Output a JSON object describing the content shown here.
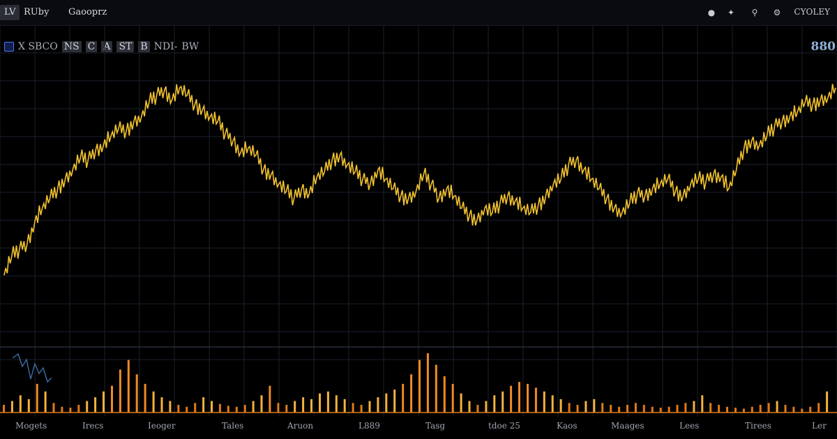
{
  "topbar": {
    "tabs": [
      {
        "label": "LV",
        "active": true
      },
      {
        "label": "RUby",
        "active": false
      },
      {
        "label": "Gaooprz",
        "active": false
      }
    ],
    "icons": [
      "circle-icon",
      "puzzle-icon",
      "pin-icon",
      "settings-icon"
    ],
    "user_label": "CYOLEY"
  },
  "legend": {
    "symbol": "X SBCO",
    "fields": [
      "NS",
      "C",
      "A",
      "ST",
      "B"
    ],
    "tail": "NDI-",
    "value": "BW"
  },
  "price_label": "880",
  "colors": {
    "background": "#000000",
    "price_line": "#f2c230",
    "volume_high": "#f08a24",
    "volume_low": "#f4b23c",
    "volume_flat": "#e07a18",
    "oscillator": "#3a6ea5",
    "grid": "#1a1f2b",
    "divider": "#3a4252"
  },
  "chart_data": {
    "type": "line",
    "title": "",
    "xlabel": "",
    "ylabel": "",
    "x_tick_labels": [
      "Mogets",
      "Irecs",
      "Ieoger",
      "Tales",
      "Aruon",
      "L889",
      "Tasg",
      "tdoe 25",
      "Kaos",
      "Maages",
      "Lees",
      "Tirees",
      "Ler"
    ],
    "grid": true,
    "series": [
      {
        "values": [
          22,
          30,
          33,
          35,
          44,
          50,
          54,
          58,
          62,
          66,
          71,
          70,
          74,
          76,
          80,
          83,
          82,
          86,
          88,
          94,
          97,
          99,
          95,
          100,
          97,
          93,
          91,
          88,
          86,
          81,
          78,
          73,
          75,
          72,
          66,
          64,
          60,
          57,
          54,
          58,
          56,
          63,
          65,
          70,
          72,
          68,
          65,
          62,
          60,
          66,
          62,
          58,
          55,
          54,
          57,
          64,
          60,
          54,
          58,
          55,
          50,
          47,
          45,
          50,
          48,
          52,
          55,
          53,
          50,
          48,
          51,
          55,
          60,
          62,
          68,
          70,
          66,
          62,
          58,
          54,
          50,
          48,
          52,
          56,
          55,
          58,
          60,
          62,
          57,
          55,
          60,
          62,
          61,
          64,
          63,
          58,
          66,
          75,
          78,
          76,
          80,
          84,
          86,
          88,
          90,
          94,
          93,
          95,
          96,
          100
        ],
        "range_note": "relative price level 0-100"
      }
    ],
    "volume": [
      8,
      12,
      18,
      14,
      30,
      22,
      10,
      6,
      5,
      8,
      12,
      16,
      22,
      28,
      45,
      55,
      40,
      30,
      22,
      16,
      12,
      8,
      6,
      10,
      16,
      12,
      9,
      7,
      6,
      8,
      12,
      18,
      28,
      10,
      8,
      12,
      16,
      14,
      20,
      22,
      18,
      14,
      10,
      8,
      12,
      16,
      20,
      24,
      30,
      40,
      55,
      62,
      50,
      38,
      30,
      20,
      12,
      8,
      12,
      18,
      22,
      28,
      32,
      30,
      26,
      22,
      18,
      14,
      10,
      8,
      12,
      14,
      10,
      8,
      6,
      8,
      10,
      8,
      6,
      5,
      6,
      8,
      10,
      12,
      18,
      10,
      8,
      6,
      5,
      4,
      6,
      8,
      10,
      12,
      8,
      6,
      4,
      6,
      10,
      22
    ],
    "ylim": [
      0,
      100
    ]
  }
}
